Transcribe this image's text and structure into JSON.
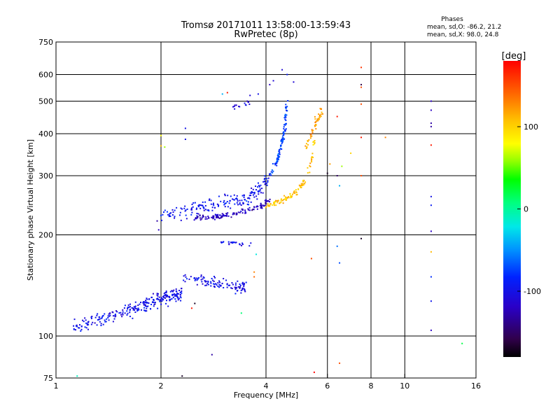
{
  "chart_data": {
    "type": "scatter",
    "title": "Tromsø 20171011 13:58:00-13:59:43",
    "subtitle": "RwPretec (8p)",
    "xlabel": "Frequency [MHz]",
    "ylabel": "Stationary phase Virtual Height [km]",
    "x_scale": "log",
    "y_scale": "log",
    "xlim": [
      1,
      16
    ],
    "ylim": [
      75,
      750
    ],
    "x_ticks": [
      1,
      2,
      4,
      6,
      8,
      10,
      16
    ],
    "x_tick_labels": [
      "1",
      "2",
      "4",
      "6",
      "8",
      "10",
      "16"
    ],
    "y_ticks": [
      75,
      100,
      200,
      300,
      400,
      500,
      600,
      750
    ],
    "y_tick_labels": [
      "75",
      "100",
      "200",
      "300",
      "400",
      "500",
      "600",
      "750"
    ],
    "grid": true,
    "phases_title": "Phases",
    "phases_line1": "mean, sd,O: -86.2, 21.2",
    "phases_line2": "mean, sd,X:  98.0, 24.8",
    "colorbar": {
      "label": "[deg]",
      "range": [
        -180,
        180
      ],
      "ticks": [
        100,
        0,
        -100
      ],
      "tick_labels": [
        "100",
        "0",
        "-100"
      ]
    },
    "traces": [
      {
        "x": [
          1.13,
          1.25,
          1.4,
          1.55,
          1.7,
          1.85,
          2.0,
          2.15,
          2.3
        ],
        "y": [
          108,
          110,
          113,
          117,
          121,
          125,
          130,
          131,
          134
        ],
        "spread": 0.07,
        "phase": -100,
        "n": 260
      },
      {
        "x": [
          2.3,
          2.6,
          2.9,
          3.2,
          3.5
        ],
        "y": [
          150,
          147,
          143,
          141,
          139
        ],
        "spread": 0.06,
        "phase": -100,
        "n": 110
      },
      {
        "x": [
          2.0,
          2.3,
          2.6,
          2.9,
          3.2,
          3.5,
          3.8,
          4.1
        ],
        "y": [
          230,
          232,
          240,
          248,
          252,
          257,
          270,
          300
        ],
        "spread": 0.07,
        "phase": -95,
        "n": 180
      },
      {
        "x": [
          2.5,
          2.8,
          3.0,
          3.3,
          3.6,
          3.9,
          4.1
        ],
        "y": [
          225,
          226,
          228,
          232,
          238,
          245,
          255
        ],
        "spread": 0.025,
        "phase": -120,
        "n": 130
      },
      {
        "x": [
          4.1,
          4.3,
          4.4,
          4.5,
          4.55,
          4.6
        ],
        "y": [
          300,
          330,
          360,
          400,
          440,
          500
        ],
        "spread": 0.03,
        "phase": -75,
        "n": 100
      },
      {
        "x": [
          4.0,
          4.3,
          4.6,
          4.9,
          5.2,
          5.4,
          5.5
        ],
        "y": [
          245,
          250,
          258,
          270,
          290,
          330,
          380
        ],
        "spread": 0.03,
        "phase": 105,
        "n": 100
      },
      {
        "x": [
          5.2,
          5.4,
          5.6,
          5.8
        ],
        "y": [
          360,
          400,
          440,
          470
        ],
        "spread": 0.04,
        "phase": 120,
        "n": 50
      },
      {
        "x": [
          3.0,
          3.3,
          3.6
        ],
        "y": [
          190,
          188,
          186
        ],
        "spread": 0.02,
        "phase": -95,
        "n": 22
      },
      {
        "x": [
          3.2,
          3.4,
          3.6
        ],
        "y": [
          480,
          488,
          496
        ],
        "spread": 0.03,
        "phase": -110,
        "n": 14
      }
    ],
    "scatter_points": [
      {
        "x": 11.9,
        "y": 500,
        "phase": -120
      },
      {
        "x": 11.9,
        "y": 470,
        "phase": -120
      },
      {
        "x": 11.9,
        "y": 430,
        "phase": -130
      },
      {
        "x": 11.9,
        "y": 420,
        "phase": -130
      },
      {
        "x": 11.9,
        "y": 370,
        "phase": 170
      },
      {
        "x": 11.9,
        "y": 260,
        "phase": -100
      },
      {
        "x": 11.9,
        "y": 245,
        "phase": -90
      },
      {
        "x": 11.9,
        "y": 205,
        "phase": -120
      },
      {
        "x": 11.9,
        "y": 178,
        "phase": 110
      },
      {
        "x": 11.9,
        "y": 150,
        "phase": -80
      },
      {
        "x": 11.9,
        "y": 127,
        "phase": -95
      },
      {
        "x": 11.9,
        "y": 104,
        "phase": -120
      },
      {
        "x": 7.5,
        "y": 630,
        "phase": 160
      },
      {
        "x": 7.5,
        "y": 560,
        "phase": -160
      },
      {
        "x": 7.5,
        "y": 550,
        "phase": 150
      },
      {
        "x": 7.5,
        "y": 490,
        "phase": 150
      },
      {
        "x": 7.5,
        "y": 390,
        "phase": 170
      },
      {
        "x": 7.5,
        "y": 300,
        "phase": 150
      },
      {
        "x": 7.5,
        "y": 195,
        "phase": -170
      },
      {
        "x": 8.8,
        "y": 390,
        "phase": 130
      },
      {
        "x": 6.4,
        "y": 450,
        "phase": 170
      },
      {
        "x": 6.4,
        "y": 300,
        "phase": -150
      },
      {
        "x": 6.4,
        "y": 185,
        "phase": -60
      },
      {
        "x": 6.5,
        "y": 165,
        "phase": -70
      },
      {
        "x": 6.5,
        "y": 83,
        "phase": 150
      },
      {
        "x": 6.0,
        "y": 305,
        "phase": -170
      },
      {
        "x": 6.1,
        "y": 325,
        "phase": 120
      },
      {
        "x": 6.6,
        "y": 320,
        "phase": 60
      },
      {
        "x": 6.5,
        "y": 280,
        "phase": -40
      },
      {
        "x": 7.0,
        "y": 350,
        "phase": 100
      },
      {
        "x": 5.5,
        "y": 78,
        "phase": 180
      },
      {
        "x": 5.4,
        "y": 170,
        "phase": 150
      },
      {
        "x": 4.8,
        "y": 570,
        "phase": -110
      },
      {
        "x": 4.45,
        "y": 620,
        "phase": -110
      },
      {
        "x": 4.2,
        "y": 575,
        "phase": -110
      },
      {
        "x": 4.1,
        "y": 560,
        "phase": -120
      },
      {
        "x": 4.6,
        "y": 600,
        "phase": -90
      },
      {
        "x": 3.6,
        "y": 520,
        "phase": -110
      },
      {
        "x": 3.8,
        "y": 525,
        "phase": -100
      },
      {
        "x": 3.0,
        "y": 525,
        "phase": -40
      },
      {
        "x": 3.1,
        "y": 530,
        "phase": 170
      },
      {
        "x": 2.35,
        "y": 415,
        "phase": -100
      },
      {
        "x": 2.35,
        "y": 385,
        "phase": -100
      },
      {
        "x": 2.0,
        "y": 395,
        "phase": 80
      },
      {
        "x": 2.0,
        "y": 368,
        "phase": 110
      },
      {
        "x": 2.05,
        "y": 365,
        "phase": 60
      },
      {
        "x": 1.95,
        "y": 220,
        "phase": -130
      },
      {
        "x": 1.97,
        "y": 207,
        "phase": -120
      },
      {
        "x": 1.15,
        "y": 76,
        "phase": -10
      },
      {
        "x": 2.3,
        "y": 76,
        "phase": -170
      },
      {
        "x": 2.8,
        "y": 88,
        "phase": -130
      },
      {
        "x": 3.4,
        "y": 117,
        "phase": 10
      },
      {
        "x": 3.7,
        "y": 155,
        "phase": 130
      },
      {
        "x": 3.7,
        "y": 150,
        "phase": 140
      },
      {
        "x": 14.6,
        "y": 95,
        "phase": 20
      },
      {
        "x": 3.75,
        "y": 175,
        "phase": -20
      },
      {
        "x": 2.45,
        "y": 121,
        "phase": 170
      },
      {
        "x": 2.5,
        "y": 125,
        "phase": -170
      }
    ]
  }
}
